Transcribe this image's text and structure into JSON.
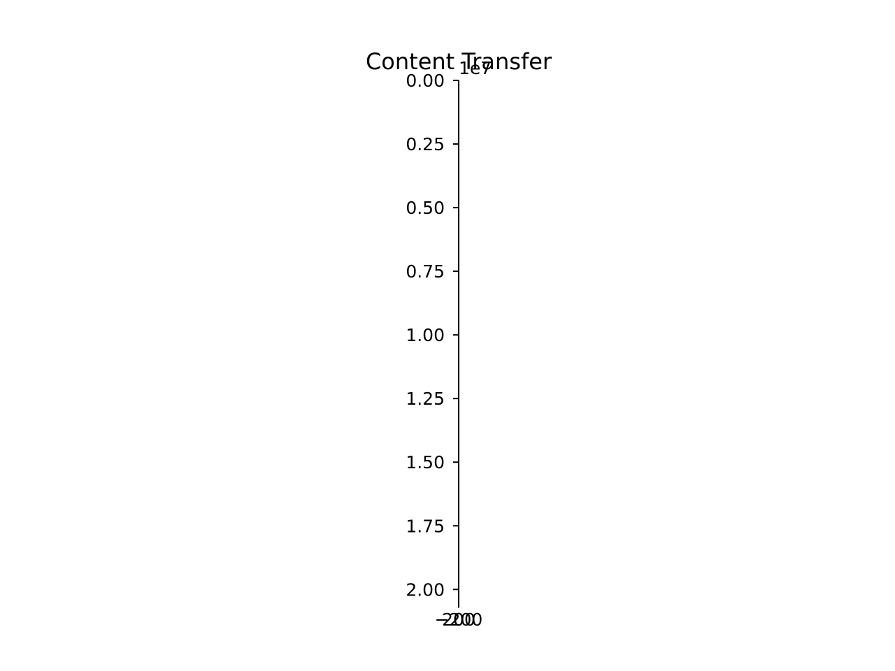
{
  "chart_data": {
    "type": "bar",
    "title": "Content Transfer",
    "xlabel": "",
    "ylabel": "",
    "ylim": [
      0,
      20500000
    ],
    "y_inverted": true,
    "y_offset_text": "1e7",
    "y_tick_values": [
      0,
      2500000,
      5000000,
      7500000,
      10000000,
      12500000,
      15000000,
      17500000,
      20000000
    ],
    "y_tick_labels": [
      "0.00",
      "0.25",
      "0.50",
      "0.75",
      "1.00",
      "1.25",
      "1.50",
      "1.75",
      "2.00"
    ],
    "x_tick_labels": [
      "−200",
      "0",
      "200"
    ],
    "categories": [],
    "values": [],
    "grid": false,
    "legend": "none",
    "spines": [
      "left",
      "bottom"
    ],
    "axis_color": "#000000"
  }
}
